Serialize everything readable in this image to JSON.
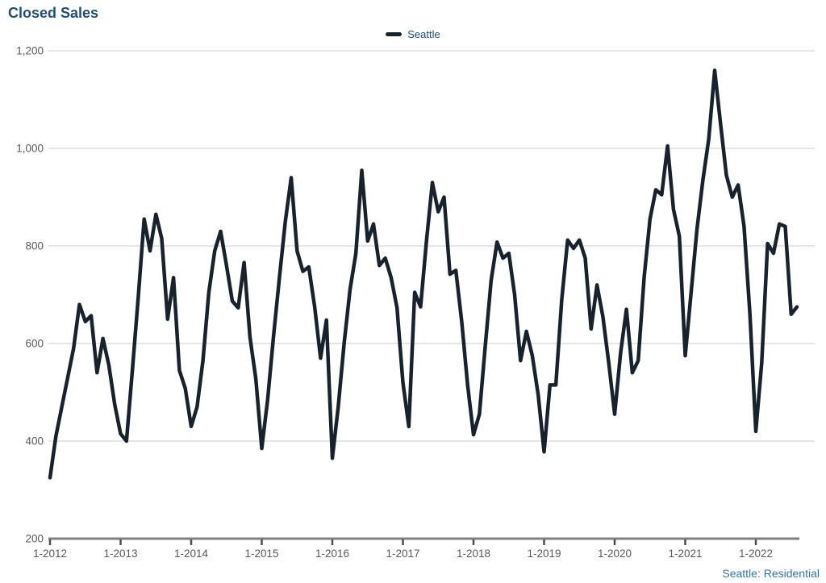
{
  "page": {
    "title": "Closed Sales",
    "footer": "Seattle: Residential"
  },
  "legend": {
    "label": "Seattle",
    "swatch_color": "#17222c"
  },
  "colors": {
    "line": "#17222c",
    "title_text": "#1f4e79",
    "axis_text": "#595959",
    "gridline": "#d6d6d6",
    "axis_line": "#808080",
    "footer_text": "#2e75b6",
    "background": "#ffffff"
  },
  "chart_data": {
    "type": "line",
    "title": "Closed Sales",
    "xlabel": "",
    "ylabel": "",
    "grid": "horizontal",
    "legend_position": "top-center",
    "footnote": "Seattle: Residential",
    "ylim": [
      200,
      1200
    ],
    "y_ticks": [
      200,
      400,
      600,
      800,
      1000,
      1200
    ],
    "y_tick_labels": [
      "200",
      "400",
      "600",
      "800",
      "1,000",
      "1,200"
    ],
    "x_tick_labels": [
      "1-2012",
      "1-2013",
      "1-2014",
      "1-2015",
      "1-2016",
      "1-2017",
      "1-2018",
      "1-2019",
      "1-2020",
      "1-2021",
      "1-2022"
    ],
    "x_tick_month_index": [
      0,
      12,
      24,
      36,
      48,
      60,
      72,
      84,
      96,
      108,
      120
    ],
    "series": [
      {
        "name": "Seattle",
        "color": "#17222c",
        "start_month": "1-2012",
        "frequency": "monthly",
        "values": [
          325,
          410,
          470,
          530,
          590,
          680,
          645,
          657,
          540,
          610,
          556,
          475,
          415,
          400,
          545,
          695,
          855,
          790,
          865,
          815,
          650,
          735,
          545,
          508,
          430,
          470,
          565,
          705,
          790,
          830,
          760,
          687,
          673,
          766,
          613,
          527,
          385,
          485,
          615,
          735,
          850,
          940,
          790,
          748,
          757,
          675,
          570,
          648,
          365,
          470,
          600,
          710,
          785,
          955,
          810,
          845,
          760,
          775,
          735,
          673,
          520,
          430,
          705,
          675,
          810,
          930,
          870,
          900,
          742,
          750,
          645,
          515,
          413,
          455,
          595,
          730,
          808,
          775,
          785,
          700,
          565,
          625,
          575,
          495,
          378,
          515,
          515,
          690,
          812,
          795,
          812,
          775,
          630,
          720,
          655,
          560,
          455,
          580,
          670,
          540,
          565,
          735,
          855,
          915,
          905,
          1005,
          875,
          820,
          575,
          705,
          835,
          935,
          1020,
          1160,
          1050,
          945,
          900,
          925,
          840,
          660,
          420,
          560,
          805,
          785,
          845,
          840,
          660,
          675
        ]
      }
    ]
  }
}
